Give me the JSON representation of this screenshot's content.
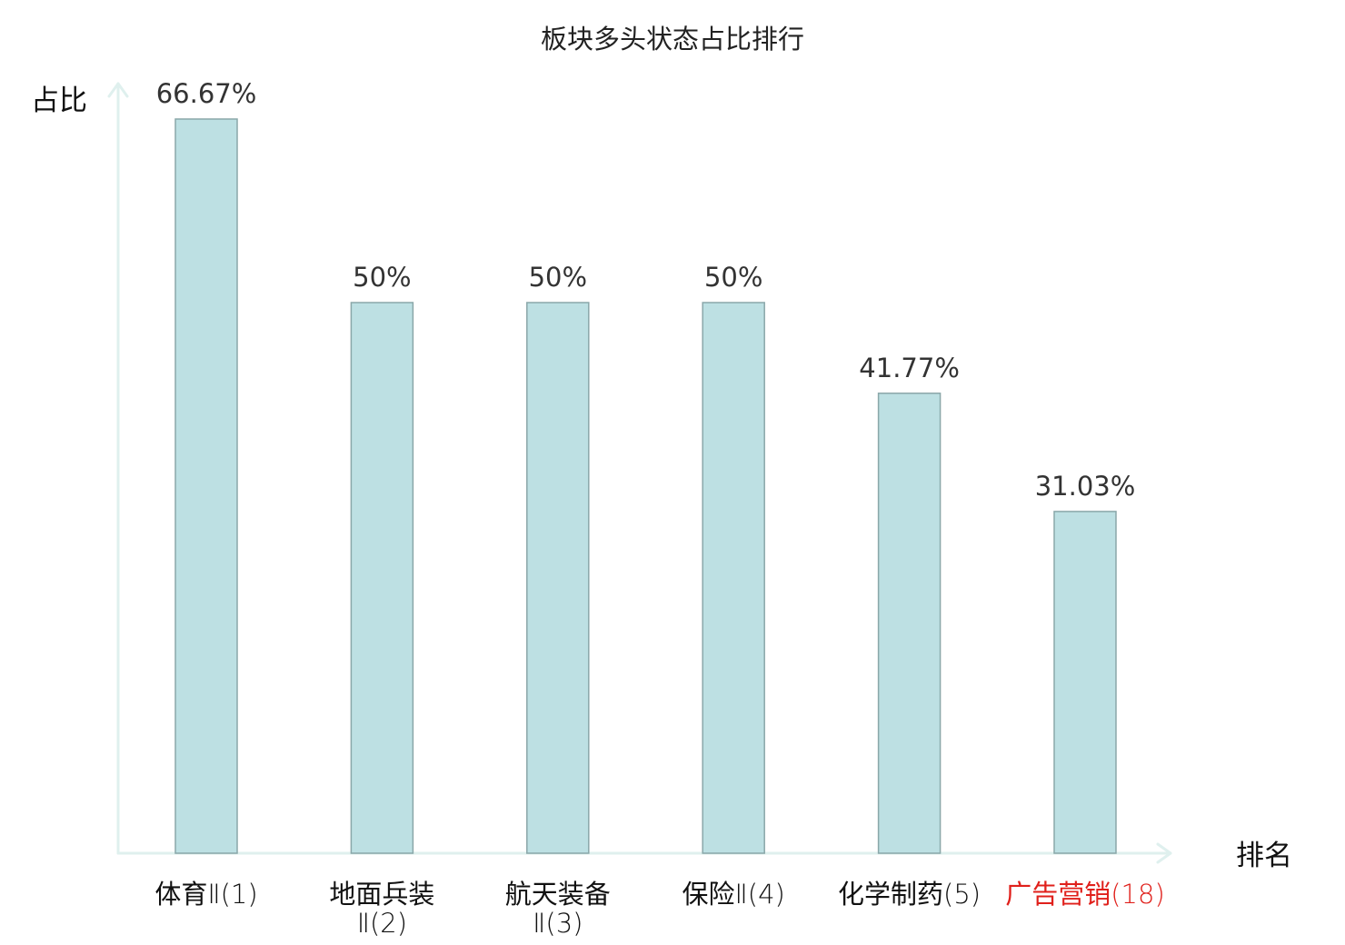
{
  "chart_data": {
    "type": "bar",
    "title": "板块多头状态占比排行",
    "ylabel": "占比",
    "xlabel": "排名",
    "ylim": [
      0,
      70
    ],
    "grid": false,
    "legend": "none",
    "bar_color": "#bde0e3",
    "bar_edge_color": "#8aa7a9",
    "axis_color": "#dff0ee",
    "highlight_color": "#e0201b",
    "label_color": "#111111",
    "categories": [
      {
        "name": "体育",
        "suffix": "Ⅱ(1)",
        "lines": [
          {
            "main": "体育",
            "suffix": "Ⅱ(1)"
          }
        ],
        "highlight": false
      },
      {
        "name": "地面兵装",
        "suffix": "Ⅱ(2)",
        "lines": [
          {
            "main": "地面兵装",
            "suffix": ""
          },
          {
            "main": "",
            "suffix": "Ⅱ(2)"
          }
        ],
        "highlight": false
      },
      {
        "name": "航天装备",
        "suffix": "Ⅱ(3)",
        "lines": [
          {
            "main": "航天装备",
            "suffix": ""
          },
          {
            "main": "",
            "suffix": "Ⅱ(3)"
          }
        ],
        "highlight": false
      },
      {
        "name": "保险",
        "suffix": "Ⅱ(4)",
        "lines": [
          {
            "main": "保险",
            "suffix": "Ⅱ(4)"
          }
        ],
        "highlight": false
      },
      {
        "name": "化学制药",
        "suffix": "(5)",
        "lines": [
          {
            "main": "化学制药",
            "suffix": "(5)"
          }
        ],
        "highlight": false
      },
      {
        "name": "广告营销",
        "suffix": "(18)",
        "lines": [
          {
            "main": "广告营销",
            "suffix": "(18)"
          }
        ],
        "highlight": true
      }
    ],
    "values": [
      66.67,
      50,
      50,
      50,
      41.77,
      31.03
    ],
    "value_labels": [
      "66.67%",
      "50%",
      "50%",
      "50%",
      "41.77%",
      "31.03%"
    ]
  }
}
